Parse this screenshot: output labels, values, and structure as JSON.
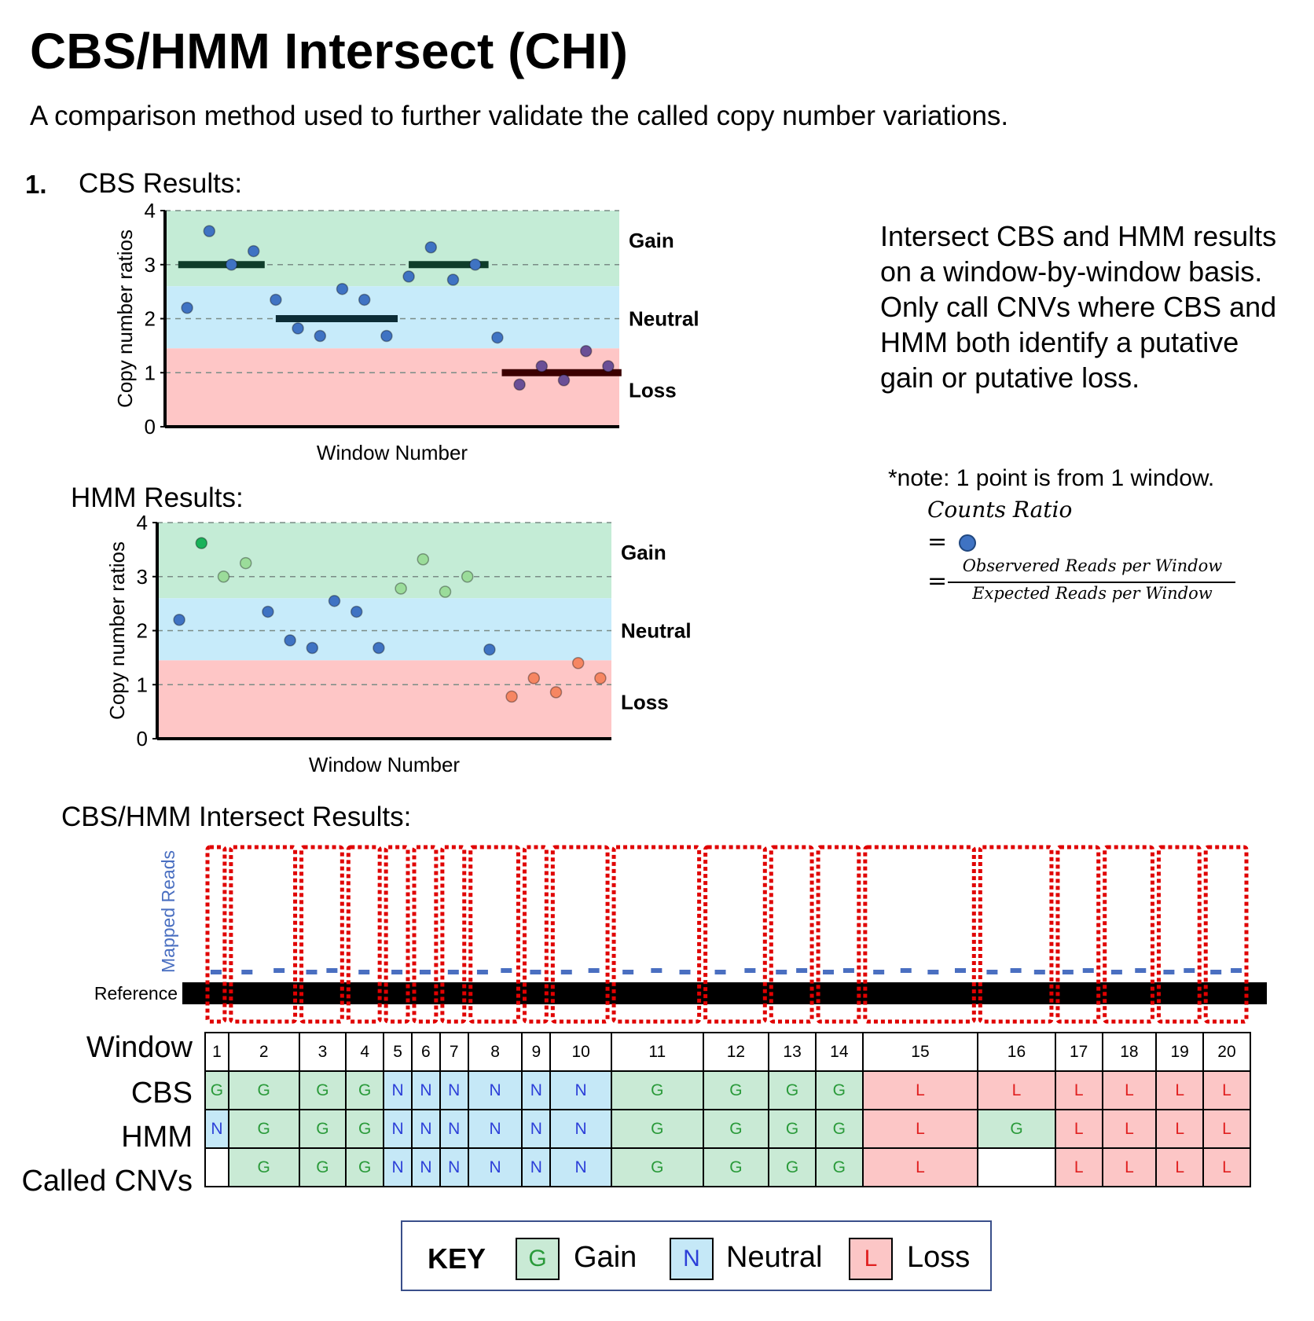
{
  "title": "CBS/HMM Intersect (CHI)",
  "subtitle": "A comparison method used to further validate the called copy number variations.",
  "step_number": "1.",
  "cbs_section": "CBS Results:",
  "hmm_section": "HMM Results:",
  "intersect_section": "CBS/HMM Intersect Results:",
  "explanation": "Intersect CBS and HMM results on a window-by-window basis.  Only call CNVs where CBS and HMM both identify a putative gain or putative loss.",
  "note": "*note: 1 point is from 1 window.",
  "formula": {
    "label": "Counts Ratio",
    "eq": "=",
    "numerator": "Observered Reads per Window",
    "denominator": "Expected Reads per Window"
  },
  "zone_labels": {
    "gain": "Gain",
    "neutral": "Neutral",
    "loss": "Loss"
  },
  "colors": {
    "gain_bg": "#c4ecd6",
    "neutral_bg": "#c7ebfa",
    "loss_bg": "#fec6c6",
    "point_blue": "#3f73c3",
    "point_purple": "#6a4f96",
    "hmm_gain_bright": "#19b25a",
    "hmm_gain_light": "#9bdc9a",
    "hmm_loss": "#f68662",
    "call_box": "#e00000",
    "mapped_reads": "#4a6fc1"
  },
  "chart_data": [
    {
      "type": "scatter",
      "title": "CBS Results:",
      "xlabel": "Window Number",
      "ylabel": "Copy number ratios",
      "ylim": [
        0,
        4
      ],
      "yticks": [
        0,
        1,
        2,
        3,
        4
      ],
      "points": [
        {
          "x": 1,
          "y": 2.2,
          "color": "blue"
        },
        {
          "x": 2,
          "y": 3.62,
          "color": "blue"
        },
        {
          "x": 3,
          "y": 3.0,
          "color": "blue"
        },
        {
          "x": 4,
          "y": 3.25,
          "color": "blue"
        },
        {
          "x": 5,
          "y": 2.35,
          "color": "blue"
        },
        {
          "x": 6,
          "y": 1.82,
          "color": "blue"
        },
        {
          "x": 7,
          "y": 1.68,
          "color": "blue"
        },
        {
          "x": 8,
          "y": 2.55,
          "color": "blue"
        },
        {
          "x": 9,
          "y": 2.35,
          "color": "blue"
        },
        {
          "x": 10,
          "y": 1.68,
          "color": "blue"
        },
        {
          "x": 11,
          "y": 2.78,
          "color": "blue"
        },
        {
          "x": 12,
          "y": 3.32,
          "color": "blue"
        },
        {
          "x": 13,
          "y": 2.72,
          "color": "blue"
        },
        {
          "x": 14,
          "y": 3.0,
          "color": "blue"
        },
        {
          "x": 15,
          "y": 1.65,
          "color": "blue"
        },
        {
          "x": 16,
          "y": 0.78,
          "color": "purple"
        },
        {
          "x": 17,
          "y": 1.12,
          "color": "purple"
        },
        {
          "x": 18,
          "y": 0.86,
          "color": "purple"
        },
        {
          "x": 19,
          "y": 1.4,
          "color": "purple"
        },
        {
          "x": 20,
          "y": 1.12,
          "color": "purple"
        }
      ],
      "segments": [
        {
          "x_start": 0.6,
          "x_end": 4.5,
          "y": 3.0,
          "color": "dark-green"
        },
        {
          "x_start": 5.0,
          "x_end": 10.5,
          "y": 2.0,
          "color": "dark-teal"
        },
        {
          "x_start": 11.0,
          "x_end": 14.6,
          "y": 3.0,
          "color": "dark-green"
        },
        {
          "x_start": 15.2,
          "x_end": 20.6,
          "y": 1.0,
          "color": "dark-red"
        }
      ]
    },
    {
      "type": "scatter",
      "title": "HMM Results:",
      "xlabel": "Window Number",
      "ylabel": "Copy number ratios",
      "ylim": [
        0,
        4
      ],
      "yticks": [
        0,
        1,
        2,
        3,
        4
      ],
      "points": [
        {
          "x": 1,
          "y": 2.2,
          "color": "blue"
        },
        {
          "x": 2,
          "y": 3.62,
          "color": "bright-green"
        },
        {
          "x": 3,
          "y": 3.0,
          "color": "light-green"
        },
        {
          "x": 4,
          "y": 3.25,
          "color": "light-green"
        },
        {
          "x": 5,
          "y": 2.35,
          "color": "blue"
        },
        {
          "x": 6,
          "y": 1.82,
          "color": "blue"
        },
        {
          "x": 7,
          "y": 1.68,
          "color": "blue"
        },
        {
          "x": 8,
          "y": 2.55,
          "color": "blue"
        },
        {
          "x": 9,
          "y": 2.35,
          "color": "blue"
        },
        {
          "x": 10,
          "y": 1.68,
          "color": "blue"
        },
        {
          "x": 11,
          "y": 2.78,
          "color": "light-green"
        },
        {
          "x": 12,
          "y": 3.32,
          "color": "light-green"
        },
        {
          "x": 13,
          "y": 2.72,
          "color": "light-green"
        },
        {
          "x": 14,
          "y": 3.0,
          "color": "light-green"
        },
        {
          "x": 15,
          "y": 1.65,
          "color": "blue"
        },
        {
          "x": 16,
          "y": 0.78,
          "color": "orange"
        },
        {
          "x": 17,
          "y": 1.12,
          "color": "orange"
        },
        {
          "x": 18,
          "y": 0.86,
          "color": "orange"
        },
        {
          "x": 19,
          "y": 1.4,
          "color": "orange"
        },
        {
          "x": 20,
          "y": 1.12,
          "color": "orange"
        }
      ]
    }
  ],
  "intersect": {
    "ylabel": "Mapped Reads",
    "reference_label": "Reference",
    "row_labels": {
      "window": "Window",
      "cbs": "CBS",
      "hmm": "HMM",
      "called": "Called CNVs"
    },
    "windows": [
      "1",
      "2",
      "3",
      "4",
      "5",
      "6",
      "7",
      "8",
      "9",
      "10",
      "11",
      "12",
      "13",
      "14",
      "15",
      "16",
      "17",
      "18",
      "19",
      "20"
    ],
    "window_widths": [
      1,
      3,
      2,
      1.6,
      1.2,
      1.2,
      1.2,
      2.3,
      1.2,
      2.6,
      3.9,
      2.8,
      2,
      2,
      4.9,
      3.3,
      2,
      2.3,
      2,
      2
    ],
    "cbs": [
      "G",
      "G",
      "G",
      "G",
      "N",
      "N",
      "N",
      "N",
      "N",
      "N",
      "G",
      "G",
      "G",
      "G",
      "L",
      "L",
      "L",
      "L",
      "L",
      "L"
    ],
    "hmm": [
      "N",
      "G",
      "G",
      "G",
      "N",
      "N",
      "N",
      "N",
      "N",
      "N",
      "G",
      "G",
      "G",
      "G",
      "L",
      "G",
      "L",
      "L",
      "L",
      "L"
    ],
    "called": [
      "",
      "G",
      "G",
      "G",
      "N",
      "N",
      "N",
      "N",
      "N",
      "N",
      "G",
      "G",
      "G",
      "G",
      "L",
      "",
      "L",
      "L",
      "L",
      "L"
    ]
  },
  "key": {
    "title": "KEY",
    "items": [
      {
        "code": "G",
        "label": "Gain"
      },
      {
        "code": "N",
        "label": "Neutral"
      },
      {
        "code": "L",
        "label": "Loss"
      }
    ]
  }
}
